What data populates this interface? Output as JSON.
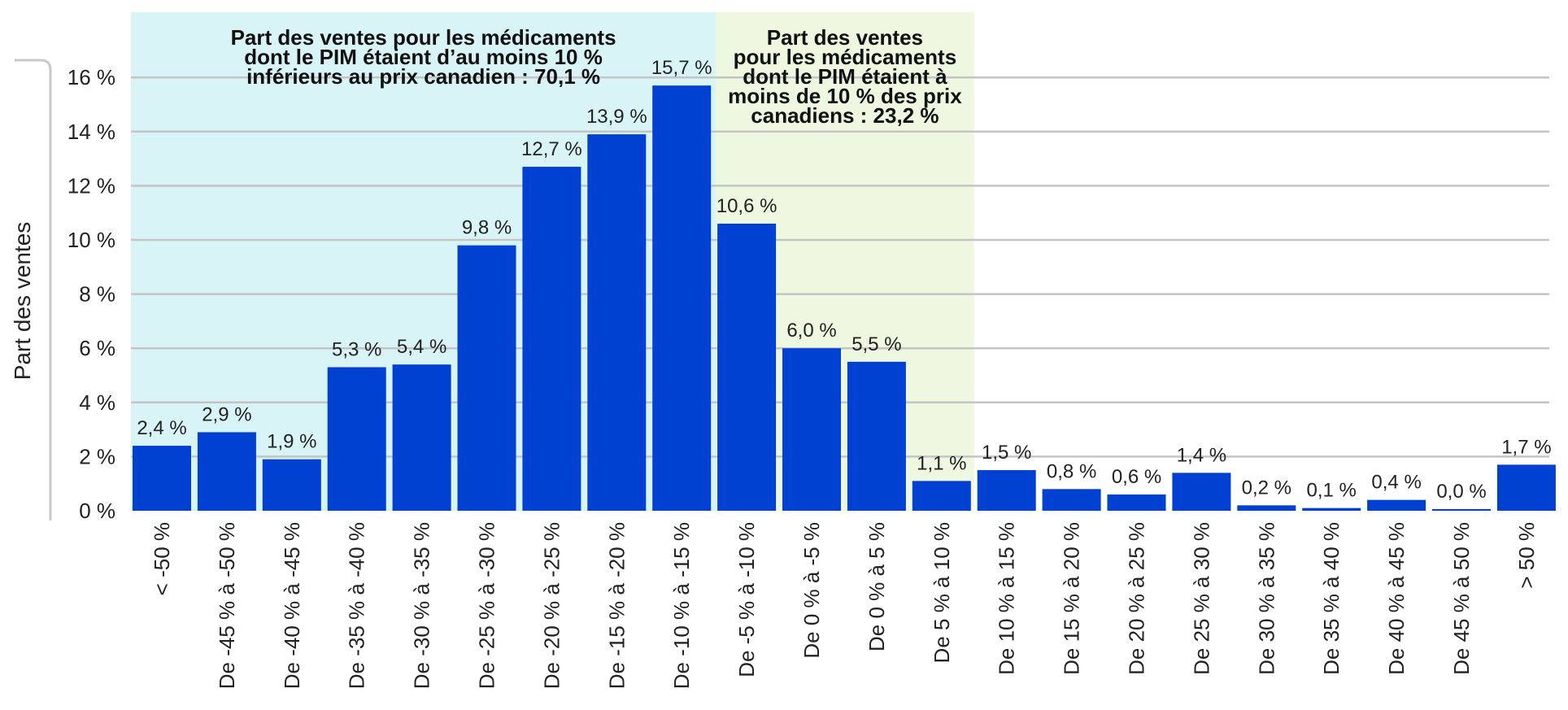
{
  "chart_data": {
    "type": "bar",
    "ylabel": "Part des ventes",
    "xlabel": "",
    "ylim": [
      0,
      16
    ],
    "yticks": [
      0,
      2,
      4,
      6,
      8,
      10,
      12,
      14,
      16
    ],
    "ytick_labels": [
      "0 %",
      "2 %",
      "4 %",
      "6 %",
      "8 %",
      "10 %",
      "12 %",
      "14 %",
      "16 %"
    ],
    "grid": true,
    "categories": [
      "< -50 %",
      "De -45 % à -50 %",
      "De -40 % à -45 %",
      "De -35 % à -40 %",
      "De -30 % à -35 %",
      "De -25 % à -30 %",
      "De -20 % à -25 %",
      "De -15 % à -20 %",
      "De -10 % à -15 %",
      "De -5 % à -10 %",
      "De 0 % à -5 %",
      "De 0 % à 5 %",
      "De 5 % à 10 %",
      "De 10 % à 15 %",
      "De 15 % à 20 %",
      "De 20 % à 25 %",
      "De 25 % à 30 %",
      "De 30 % à 35 %",
      "De 35 % à 40 %",
      "De 40 % à 45 %",
      "De 45 % à 50 %",
      "> 50 %"
    ],
    "values": [
      2.4,
      2.9,
      1.9,
      5.3,
      5.4,
      9.8,
      12.7,
      13.9,
      15.7,
      10.6,
      6.0,
      5.5,
      1.1,
      1.5,
      0.8,
      0.6,
      1.4,
      0.2,
      0.1,
      0.4,
      0.0,
      1.7
    ],
    "value_labels": [
      "2,4 %",
      "2,9 %",
      "1,9 %",
      "5,3 %",
      "5,4 %",
      "9,8 %",
      "12,7 %",
      "13,9 %",
      "15,7 %",
      "10,6 %",
      "6,0 %",
      "5,5 %",
      "1,1 %",
      "1,5 %",
      "0,8 %",
      "0,6 %",
      "1,4 %",
      "0,2 %",
      "0,1 %",
      "0,4 %",
      "0,0 %",
      "1,7 %"
    ],
    "bar_color": "#0041d2",
    "annotations": [
      {
        "lines": [
          "Part des ventes pour les médicaments",
          "dont le PIM étaient d’au moins 10 %",
          "inférieurs au prix canadien : 70,1 %"
        ],
        "first_category": 0,
        "last_category": 8,
        "color": "#d8f4f6"
      },
      {
        "lines": [
          "Part des ventes",
          "pour les médicaments",
          "dont le PIM étaient à",
          "moins de 10 % des prix",
          "canadiens : 23,2 %"
        ],
        "first_category": 9,
        "last_category": 12,
        "color": "#eef7df"
      }
    ]
  }
}
